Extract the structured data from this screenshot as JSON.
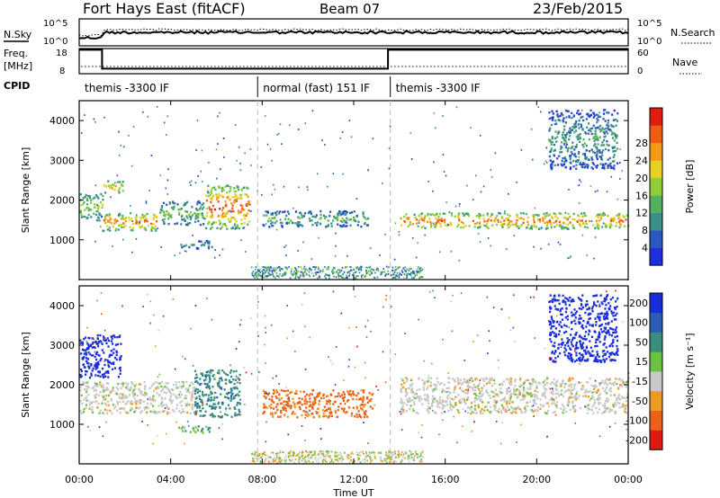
{
  "header": {
    "station": "Fort Hays East (fitACF)",
    "beam": "Beam 07",
    "date": "23/Feb/2015"
  },
  "noise_panel": {
    "left_label": "N.Sky",
    "right_label": "N.Search",
    "left_ticks": [
      "10^5",
      "10^0"
    ],
    "right_ticks": [
      "10^5",
      "10^0"
    ]
  },
  "freq_panel": {
    "left_label_line1": "Freq.",
    "left_label_line2": "[MHz]",
    "right_label": "Nave",
    "left_ticks": [
      "18",
      "8"
    ],
    "right_ticks": [
      "60",
      "0"
    ],
    "freq_steps": [
      {
        "t_start": 0.0,
        "t_end": 1.0,
        "freq_mhz": 17.5
      },
      {
        "t_start": 1.0,
        "t_end": 13.5,
        "freq_mhz": 10.0
      },
      {
        "t_start": 13.5,
        "t_end": 24.0,
        "freq_mhz": 17.5
      }
    ]
  },
  "cpid": {
    "label": "CPID",
    "segments": [
      {
        "t_start": 0.0,
        "t_end": 7.8,
        "text": "themis -3300 IF"
      },
      {
        "t_start": 7.8,
        "t_end": 13.6,
        "text": "normal (fast) 151 IF"
      },
      {
        "t_start": 13.6,
        "t_end": 24.0,
        "text": "themis -3300 IF"
      }
    ]
  },
  "colors": {
    "power_scale": [
      "#1f2fe0",
      "#2a57c0",
      "#3b8f8a",
      "#52b060",
      "#8fce3a",
      "#e6d020",
      "#f29a18",
      "#ee5c14",
      "#e01c10"
    ],
    "velocity_scale": [
      "#1a2ed8",
      "#2a5cb8",
      "#3a8f7c",
      "#6cc240",
      "#c8c8c8",
      "#ec9a20",
      "#ec6018",
      "#e01812"
    ]
  },
  "chart_data": [
    {
      "type": "heatmap",
      "ylabel": "Slant Range [km]",
      "x_range_hours_ut": [
        0,
        24
      ],
      "ylim": [
        0,
        4500
      ],
      "y_ticks": [
        1000,
        2000,
        3000,
        4000
      ],
      "colorbar": {
        "label": "Power [dB]",
        "ticks": [
          "4",
          "8",
          "12",
          "16",
          "20",
          "24",
          "28"
        ]
      },
      "echo_regions": [
        {
          "t_start": 0.0,
          "t_end": 1.0,
          "range_km": [
            1500,
            2200
          ],
          "power_db": 16
        },
        {
          "t_start": 1.0,
          "t_end": 3.5,
          "range_km": [
            1250,
            1700
          ],
          "power_db": 24
        },
        {
          "t_start": 1.0,
          "t_end": 1.9,
          "range_km": [
            2200,
            2500
          ],
          "power_db": 20
        },
        {
          "t_start": 3.5,
          "t_end": 5.5,
          "range_km": [
            1400,
            2000
          ],
          "power_db": 14
        },
        {
          "t_start": 5.5,
          "t_end": 7.4,
          "range_km": [
            1300,
            2400
          ],
          "power_db": 26
        },
        {
          "t_start": 4.4,
          "t_end": 5.8,
          "range_km": [
            800,
            1000
          ],
          "power_db": 10
        },
        {
          "t_start": 8.0,
          "t_end": 12.6,
          "range_km": [
            1350,
            1750
          ],
          "power_db": 12
        },
        {
          "t_start": 14.0,
          "t_end": 24.0,
          "range_km": [
            1300,
            1700
          ],
          "power_db": 24
        },
        {
          "t_start": 20.5,
          "t_end": 23.5,
          "range_km": [
            2800,
            4300
          ],
          "power_db": 10
        }
      ]
    },
    {
      "type": "heatmap",
      "ylabel": "Slant Range [km]",
      "xlabel": "Time UT",
      "x_range_hours_ut": [
        0,
        24
      ],
      "x_ticks": [
        "00:00",
        "04:00",
        "08:00",
        "12:00",
        "16:00",
        "20:00",
        "00:00"
      ],
      "ylim": [
        0,
        4500
      ],
      "y_ticks": [
        1000,
        2000,
        3000,
        4000
      ],
      "colorbar": {
        "label": "Velocity [m s⁻¹]",
        "ticks": [
          "200",
          "100",
          "50",
          "15",
          "-15",
          "-50",
          "-100",
          "-200"
        ]
      },
      "echo_regions": [
        {
          "t_start": 0.0,
          "t_end": 1.8,
          "range_km": [
            2200,
            3300
          ],
          "velocity_ms": 200
        },
        {
          "t_start": 0.0,
          "t_end": 5.0,
          "range_km": [
            1300,
            2100
          ],
          "velocity_ms": 0
        },
        {
          "t_start": 5.0,
          "t_end": 7.0,
          "range_km": [
            1200,
            2400
          ],
          "velocity_ms": 60
        },
        {
          "t_start": 4.3,
          "t_end": 5.7,
          "range_km": [
            800,
            1000
          ],
          "velocity_ms": 30
        },
        {
          "t_start": 8.0,
          "t_end": 12.8,
          "range_km": [
            1200,
            1900
          ],
          "velocity_ms": -60
        },
        {
          "t_start": 14.0,
          "t_end": 24.0,
          "range_km": [
            1300,
            2200
          ],
          "velocity_ms": 0
        },
        {
          "t_start": 20.5,
          "t_end": 23.5,
          "range_km": [
            2600,
            4300
          ],
          "velocity_ms": 200
        }
      ]
    }
  ]
}
